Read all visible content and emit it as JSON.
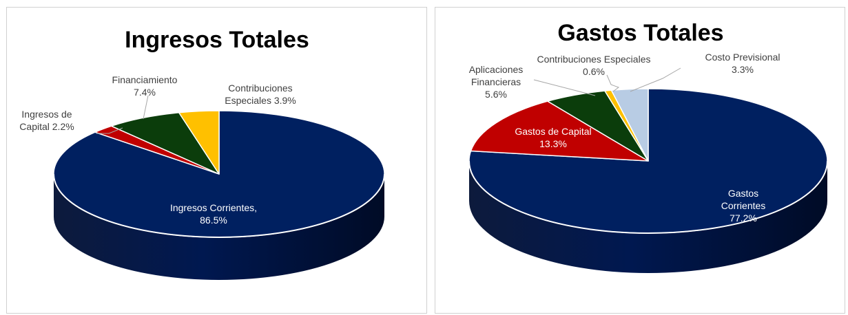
{
  "chart_data": [
    {
      "type": "pie",
      "title": "Ingresos Totales",
      "slices": [
        {
          "name": "Ingresos Corrientes",
          "value": 86.5,
          "color": "#002060",
          "label_lines": [
            "Ingresos Corrientes,",
            "86.5%"
          ]
        },
        {
          "name": "Ingresos de Capital",
          "value": 2.2,
          "color": "#c00000",
          "label_lines": [
            "Ingresos de",
            "Capital  2.2%"
          ]
        },
        {
          "name": "Financiamiento",
          "value": 7.4,
          "color": "#0b3d0b",
          "label_lines": [
            "Financiamiento",
            "7.4%"
          ]
        },
        {
          "name": "Contribuciones Especiales",
          "value": 3.9,
          "color": "#ffc000",
          "label_lines": [
            "Contribuciones",
            "Especiales 3.9%"
          ]
        }
      ]
    },
    {
      "type": "pie",
      "title": "Gastos Totales",
      "slices": [
        {
          "name": "Gastos Corrientes",
          "value": 77.2,
          "color": "#002060",
          "label_lines": [
            "Gastos",
            "Corrientes",
            "77.2%"
          ]
        },
        {
          "name": "Gastos de Capital",
          "value": 13.3,
          "color": "#c00000",
          "label_lines": [
            "Gastos de Capital",
            "13.3%"
          ]
        },
        {
          "name": "Aplicaciones Financieras",
          "value": 5.6,
          "color": "#0b3d0b",
          "label_lines": [
            "Aplicaciones",
            "Financieras",
            "5.6%"
          ]
        },
        {
          "name": "Contribuciones Especiales",
          "value": 0.6,
          "color": "#ffc000",
          "label_lines": [
            "Contribuciones  Especiales",
            "0.6%"
          ]
        },
        {
          "name": "Costo Previsional",
          "value": 3.3,
          "color": "#b8cce4",
          "label_lines": [
            "Costo Previsional",
            "3.3%"
          ]
        }
      ]
    }
  ]
}
